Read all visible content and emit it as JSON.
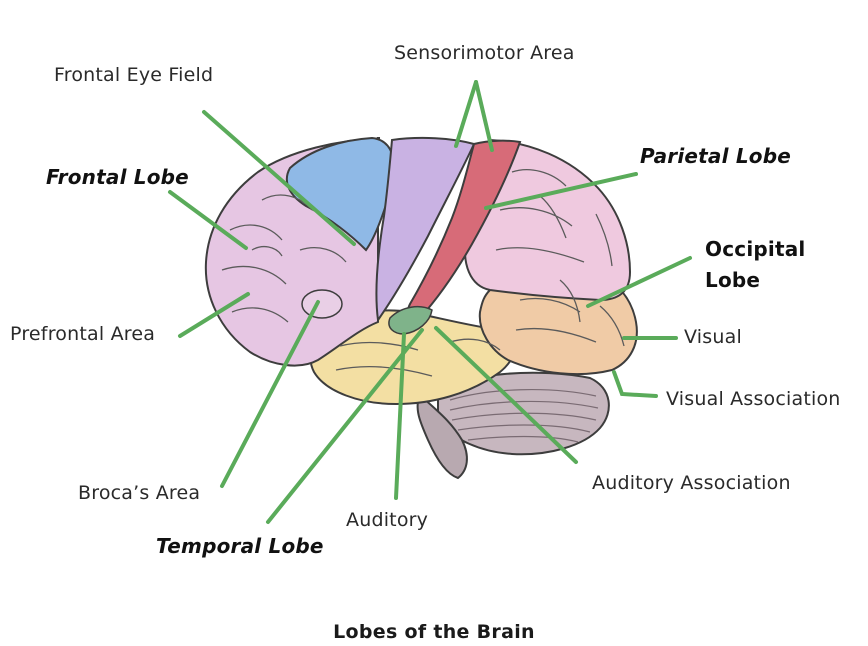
{
  "caption": "Lobes of the Brain",
  "labels": {
    "frontal_eye_field": "Frontal Eye Field",
    "sensorimotor_area": "Sensorimotor Area",
    "frontal_lobe": "Frontal Lobe",
    "parietal_lobe": "Parietal Lobe",
    "occipital_lobe_line1": "Occipital",
    "occipital_lobe_line2": "Lobe",
    "prefrontal_area": "Prefrontal Area",
    "visual": "Visual",
    "visual_association": "Visual Association",
    "brocas_area": "Broca’s Area",
    "auditory_association": "Auditory Association",
    "auditory": "Auditory",
    "temporal_lobe": "Temporal Lobe"
  },
  "colors": {
    "leader_line": "#5aab5a",
    "frontal": "#e6c6e3",
    "frontal_eye_field": "#8fb9e6",
    "sensory_strip": "#c9b2e3",
    "motor_strip": "#d76b78",
    "parietal": "#efc9df",
    "occipital": "#f0cba6",
    "temporal": "#f3dfa3",
    "cerebellum": "#c7b7bf",
    "brainstem": "#b8a9b0",
    "outline": "#3d3d3d"
  }
}
